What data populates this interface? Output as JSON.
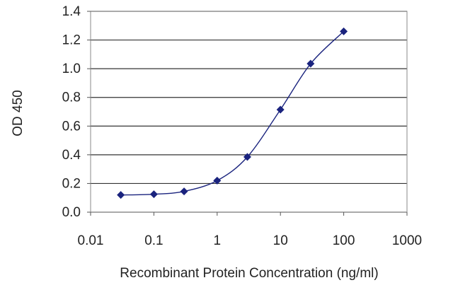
{
  "chart_data": {
    "type": "line",
    "title": "",
    "xlabel": "Recombinant Protein Concentration (ng/ml)",
    "ylabel": "OD 450",
    "x_scale": "log",
    "xlim": [
      0.01,
      1000
    ],
    "ylim": [
      0.0,
      1.4
    ],
    "x_ticks": [
      0.01,
      0.1,
      1,
      10,
      100,
      1000
    ],
    "x_tick_labels": [
      "0.01",
      "0.1",
      "1",
      "10",
      "100",
      "1000"
    ],
    "y_ticks": [
      0.0,
      0.2,
      0.4,
      0.6,
      0.8,
      1.0,
      1.2,
      1.4
    ],
    "y_tick_labels": [
      "0.0",
      "0.2",
      "0.4",
      "0.6",
      "0.8",
      "1.0",
      "1.2",
      "1.4"
    ],
    "grid": "horizontal",
    "legend": "none",
    "series": [
      {
        "x": [
          0.03,
          0.1,
          0.3,
          1,
          3,
          10,
          30,
          100
        ],
        "y": [
          0.12,
          0.125,
          0.145,
          0.22,
          0.385,
          0.715,
          1.035,
          1.26
        ],
        "color": "#1a237e",
        "marker": "diamond"
      }
    ]
  }
}
